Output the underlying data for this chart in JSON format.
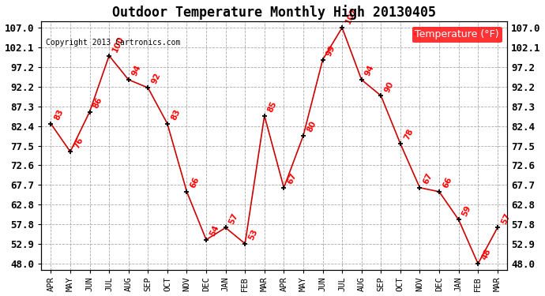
{
  "title": "Outdoor Temperature Monthly High 20130405",
  "copyright": "Copyright 2013 Cartronics.com",
  "legend_label": "Temperature (°F)",
  "months": [
    "APR",
    "MAY",
    "JUN",
    "JUL",
    "AUG",
    "SEP",
    "OCT",
    "NOV",
    "DEC",
    "JAN",
    "FEB",
    "MAR",
    "APR",
    "MAY",
    "JUN",
    "JUL",
    "AUG",
    "SEP",
    "OCT",
    "NOV",
    "DEC",
    "JAN",
    "FEB",
    "MAR"
  ],
  "values": [
    83,
    76,
    86,
    100,
    94,
    92,
    83,
    66,
    54,
    57,
    53,
    85,
    67,
    80,
    99,
    107,
    94,
    90,
    78,
    67,
    66,
    59,
    48,
    57
  ],
  "ylim_min": 48.0,
  "ylim_max": 107.0,
  "yticks": [
    48.0,
    52.9,
    57.8,
    62.8,
    67.7,
    72.6,
    77.5,
    82.4,
    87.3,
    92.2,
    97.2,
    102.1,
    107.0
  ],
  "line_color": "#cc0000",
  "marker_color": "black",
  "label_color": "red",
  "bg_color": "#ffffff",
  "grid_color": "#aaaaaa",
  "title_fontsize": 12,
  "label_fontsize": 7.5,
  "axis_fontsize": 7.5,
  "ytick_fontsize": 9,
  "legend_bg": "red",
  "legend_text_color": "white",
  "legend_fontsize": 9,
  "copyright_fontsize": 7
}
